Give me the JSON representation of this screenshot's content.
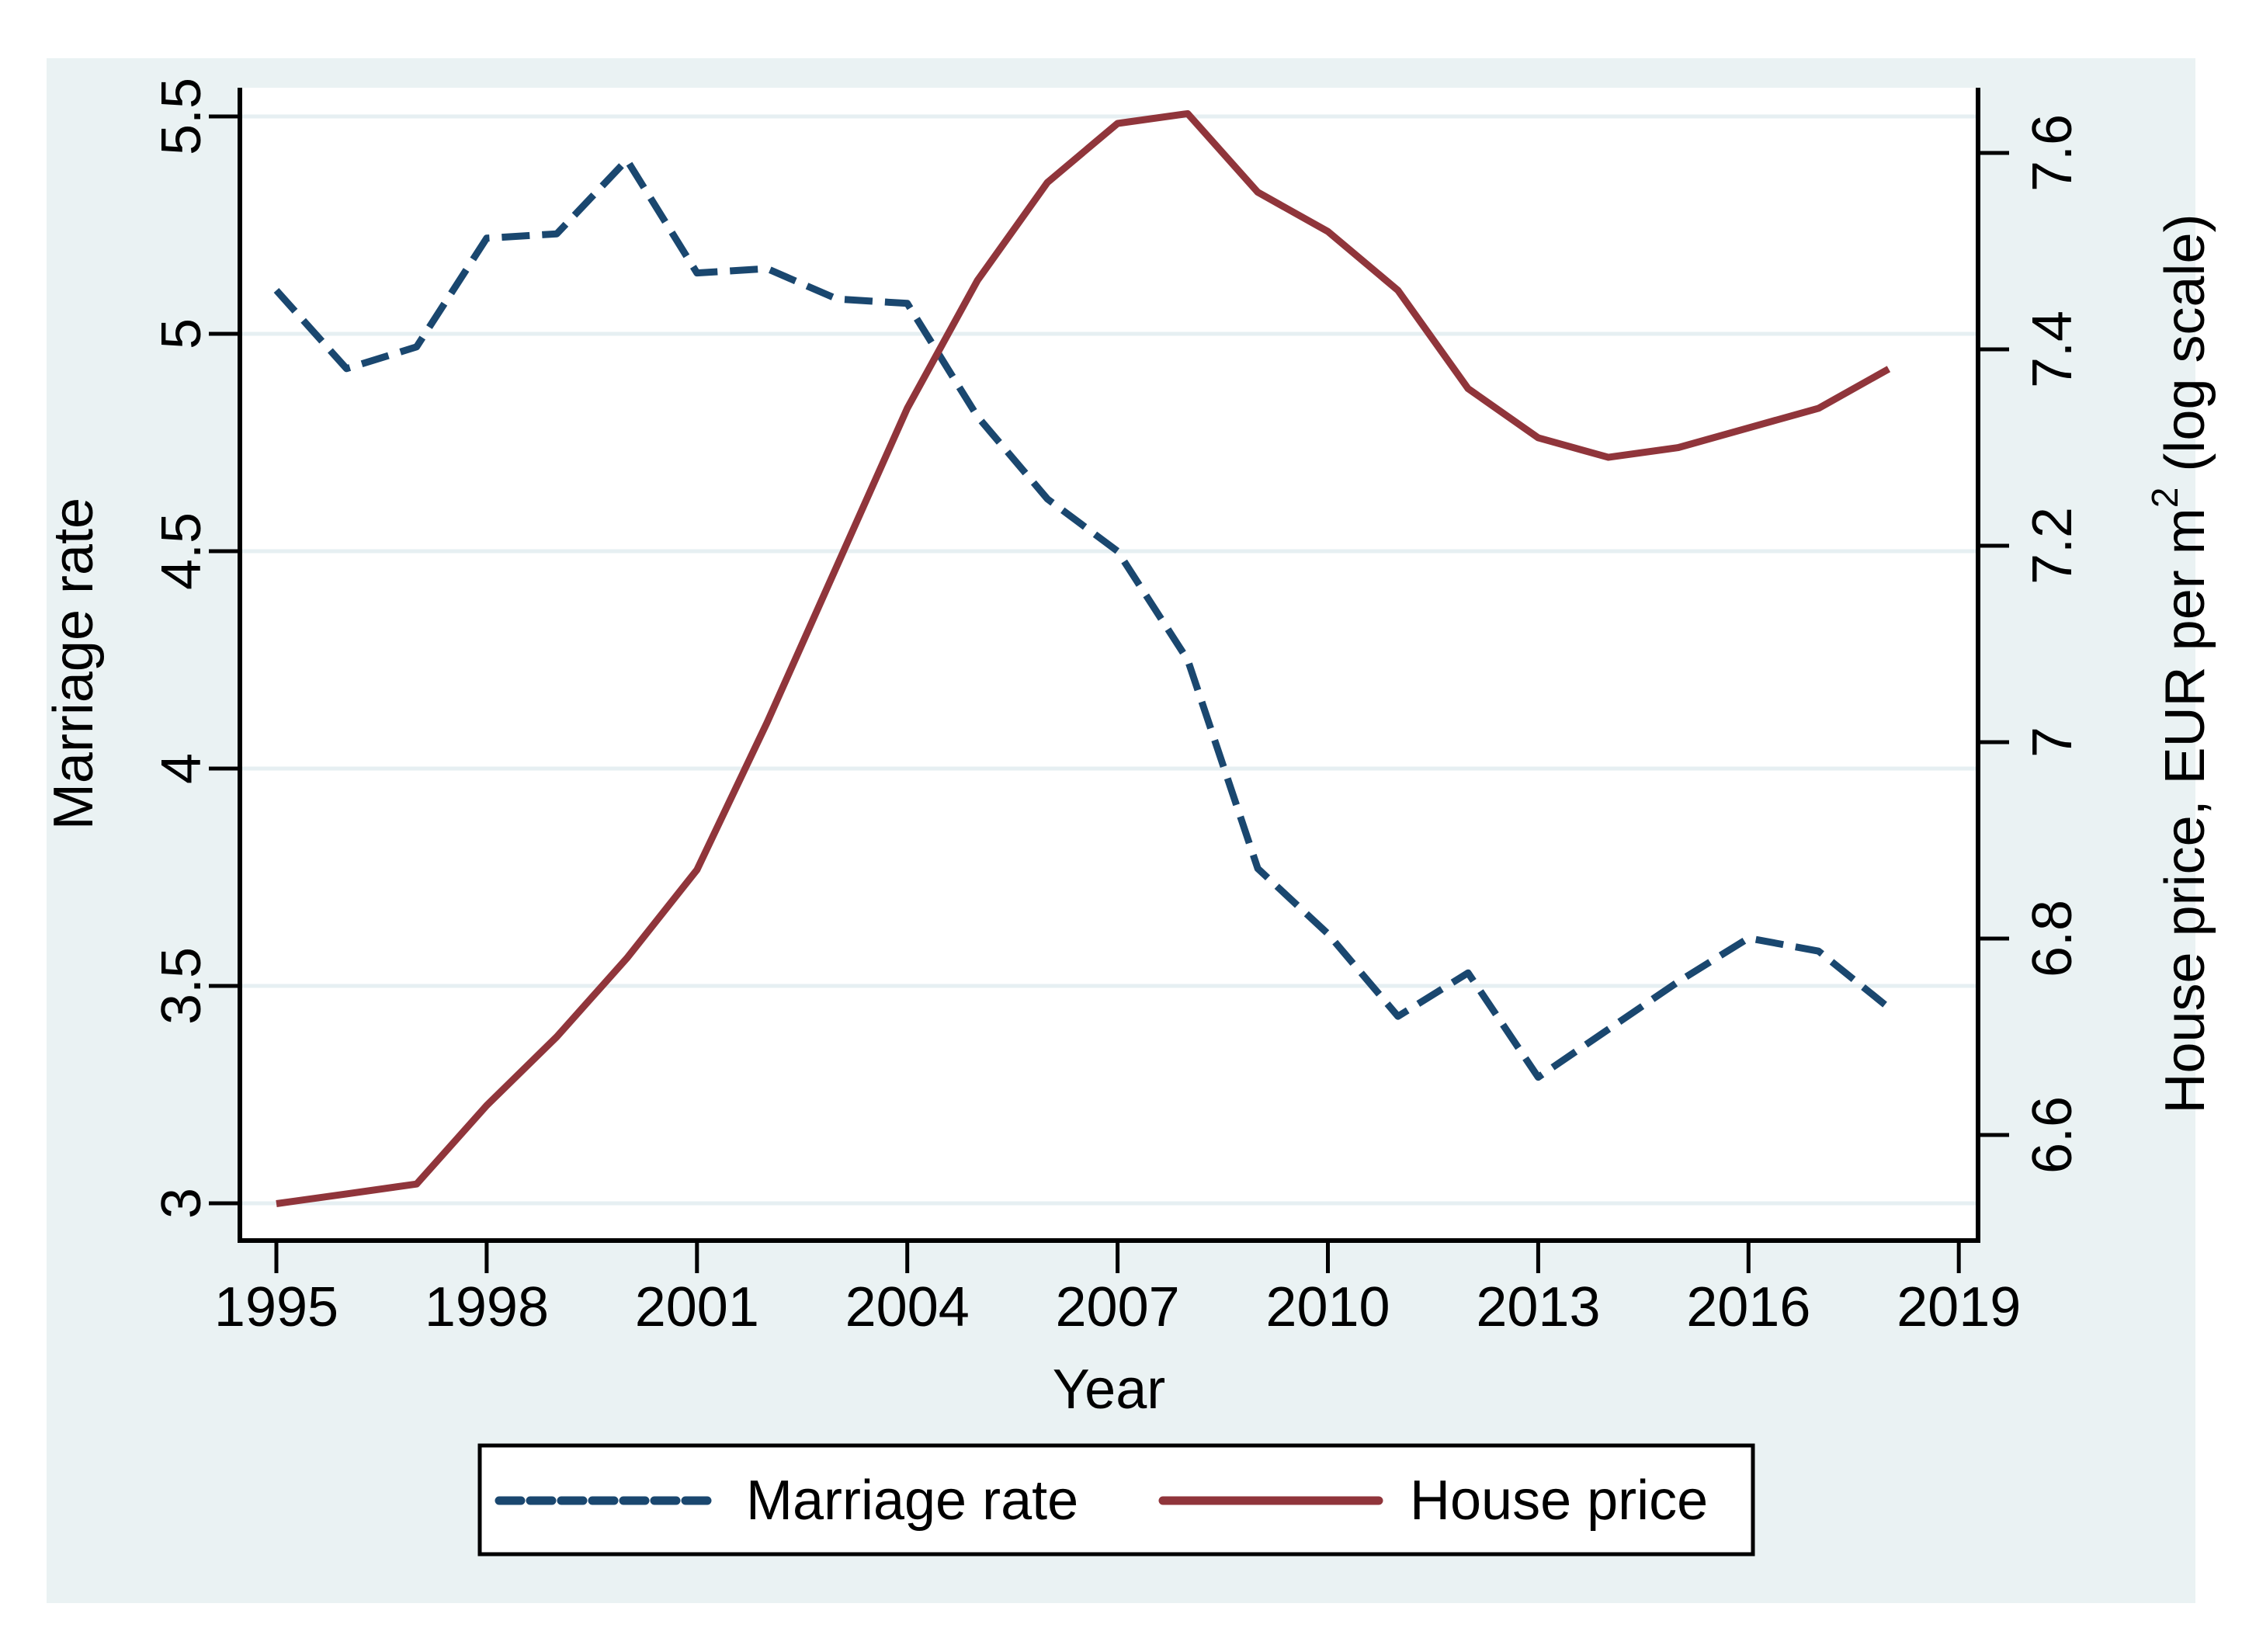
{
  "chart_data": {
    "type": "line",
    "title": "",
    "x": [
      1995,
      1996,
      1997,
      1998,
      1999,
      2000,
      2001,
      2002,
      2003,
      2004,
      2005,
      2006,
      2007,
      2008,
      2009,
      2010,
      2011,
      2012,
      2013,
      2014,
      2015,
      2016,
      2017,
      2018
    ],
    "series": [
      {
        "name": "Marriage rate",
        "axis": "left",
        "style": "dashed",
        "color": "#1a476f",
        "values": [
          5.1,
          4.92,
          4.97,
          5.22,
          5.23,
          5.4,
          5.14,
          5.15,
          5.08,
          5.07,
          4.81,
          4.62,
          4.5,
          4.25,
          3.77,
          3.62,
          3.43,
          3.53,
          3.29,
          3.4,
          3.51,
          3.61,
          3.58,
          3.45
        ]
      },
      {
        "name": "House price",
        "axis": "right",
        "style": "solid",
        "color": "#90353b",
        "values": [
          6.53,
          6.54,
          6.55,
          6.63,
          6.7,
          6.78,
          6.87,
          7.02,
          7.18,
          7.34,
          7.47,
          7.57,
          7.63,
          7.64,
          7.56,
          7.52,
          7.46,
          7.36,
          7.31,
          7.29,
          7.3,
          7.32,
          7.34,
          7.38
        ]
      }
    ],
    "xlabel": "Year",
    "x_tick_values": [
      1995,
      1998,
      2001,
      2004,
      2007,
      2010,
      2013,
      2016,
      2019
    ],
    "x_tick_labels": [
      "1995",
      "1998",
      "2001",
      "2004",
      "2007",
      "2010",
      "2013",
      "2016",
      "2019"
    ],
    "y_left": {
      "label": "Marriage rate",
      "tick_values": [
        3,
        3.5,
        4,
        4.5,
        5,
        5.5
      ],
      "tick_labels": [
        "3",
        "3.5",
        "4",
        "4.5",
        "5",
        "5.5"
      ],
      "lim": [
        2.96,
        5.53
      ]
    },
    "y_right": {
      "label_before": "House price, EUR per m",
      "label_sup": "2",
      "label_after": " (log scale)",
      "tick_values": [
        6.6,
        6.8,
        7.0,
        7.2,
        7.4,
        7.6
      ],
      "tick_labels": [
        "6.6",
        "6.8",
        "7",
        "7.2",
        "7.4",
        "7.6"
      ],
      "lim": [
        6.49,
        7.67
      ]
    },
    "grid": true,
    "legend_position": "bottom"
  },
  "colors": {
    "marriage": "#1a476f",
    "house": "#90353b",
    "region_bg": "#eaf2f3",
    "plot_bg": "#ffffff",
    "grid": "#e6eff2",
    "axis": "#000000"
  }
}
